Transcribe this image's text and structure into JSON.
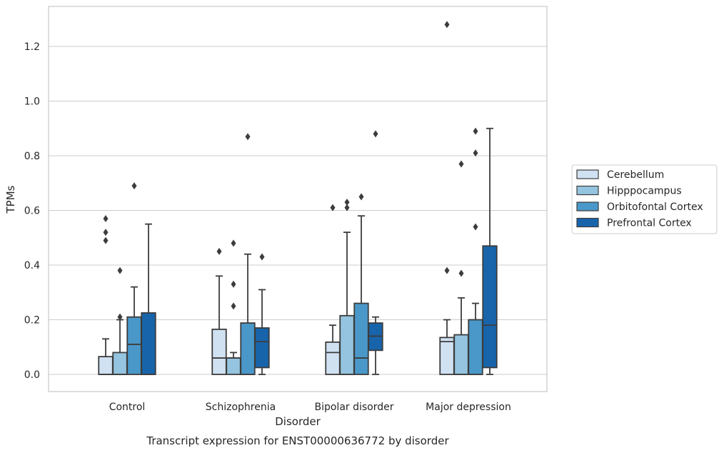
{
  "chart_data": {
    "type": "boxplot",
    "caption": "Transcript expression for ENST00000636772 by disorder",
    "xlabel": "Disorder",
    "ylabel": "TPMs",
    "ylim": [
      -0.06,
      1.35
    ],
    "yticks": [
      0.0,
      0.2,
      0.4,
      0.6,
      0.8,
      1.0,
      1.2
    ],
    "ytick_labels": [
      "0.0",
      "0.2",
      "0.4",
      "0.6",
      "0.8",
      "1.0",
      "1.2"
    ],
    "grid": "horizontal",
    "legend_position": "right",
    "categories": [
      "Control",
      "Schizophrenia",
      "Bipolar disorder",
      "Major depression"
    ],
    "series": [
      {
        "name": "Cerebellum",
        "color": "#d0e1f2",
        "boxes": [
          {
            "q1": 0.0,
            "median": 0.0,
            "q3": 0.065,
            "whisker_low": 0.0,
            "whisker_high": 0.13,
            "outliers": [
              0.49,
              0.52,
              0.57
            ]
          },
          {
            "q1": 0.0,
            "median": 0.06,
            "q3": 0.165,
            "whisker_low": 0.0,
            "whisker_high": 0.36,
            "outliers": [
              0.45
            ]
          },
          {
            "q1": 0.0,
            "median": 0.08,
            "q3": 0.118,
            "whisker_low": 0.0,
            "whisker_high": 0.18,
            "outliers": [
              0.61
            ]
          },
          {
            "q1": 0.0,
            "median": 0.12,
            "q3": 0.135,
            "whisker_low": 0.0,
            "whisker_high": 0.2,
            "outliers": [
              0.38,
              1.28
            ]
          }
        ]
      },
      {
        "name": "Hipppocampus",
        "color": "#94c4df",
        "boxes": [
          {
            "q1": 0.0,
            "median": 0.0,
            "q3": 0.08,
            "whisker_low": 0.0,
            "whisker_high": 0.2,
            "outliers": [
              0.21,
              0.38
            ]
          },
          {
            "q1": 0.0,
            "median": 0.06,
            "q3": 0.06,
            "whisker_low": 0.0,
            "whisker_high": 0.08,
            "outliers": [
              0.25,
              0.33,
              0.48
            ]
          },
          {
            "q1": 0.0,
            "median": 0.0,
            "q3": 0.215,
            "whisker_low": 0.0,
            "whisker_high": 0.52,
            "outliers": [
              0.61,
              0.63
            ]
          },
          {
            "q1": 0.0,
            "median": 0.0,
            "q3": 0.145,
            "whisker_low": 0.0,
            "whisker_high": 0.28,
            "outliers": [
              0.37,
              0.77
            ]
          }
        ]
      },
      {
        "name": "Orbitofontal Cortex",
        "color": "#4a98c9",
        "boxes": [
          {
            "q1": 0.0,
            "median": 0.11,
            "q3": 0.21,
            "whisker_low": 0.0,
            "whisker_high": 0.32,
            "outliers": [
              0.69
            ]
          },
          {
            "q1": 0.0,
            "median": 0.0,
            "q3": 0.188,
            "whisker_low": 0.0,
            "whisker_high": 0.44,
            "outliers": [
              0.87
            ]
          },
          {
            "q1": 0.0,
            "median": 0.06,
            "q3": 0.26,
            "whisker_low": 0.0,
            "whisker_high": 0.58,
            "outliers": [
              0.65
            ]
          },
          {
            "q1": 0.0,
            "median": 0.0,
            "q3": 0.2,
            "whisker_low": 0.0,
            "whisker_high": 0.26,
            "outliers": [
              0.54,
              0.81,
              0.89
            ]
          }
        ]
      },
      {
        "name": "Prefrontal Cortex",
        "color": "#1764ab",
        "boxes": [
          {
            "q1": 0.0,
            "median": 0.0,
            "q3": 0.225,
            "whisker_low": 0.0,
            "whisker_high": 0.55,
            "outliers": []
          },
          {
            "q1": 0.025,
            "median": 0.12,
            "q3": 0.17,
            "whisker_low": 0.0,
            "whisker_high": 0.31,
            "outliers": [
              0.43
            ]
          },
          {
            "q1": 0.088,
            "median": 0.14,
            "q3": 0.188,
            "whisker_low": 0.0,
            "whisker_high": 0.21,
            "outliers": [
              0.88
            ]
          },
          {
            "q1": 0.025,
            "median": 0.18,
            "q3": 0.47,
            "whisker_low": 0.0,
            "whisker_high": 0.9,
            "outliers": []
          }
        ]
      }
    ]
  }
}
